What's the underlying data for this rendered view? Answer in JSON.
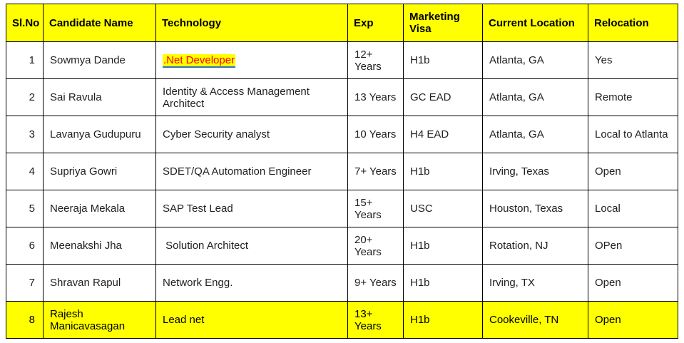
{
  "table": {
    "columns": [
      {
        "label": "Sl.No"
      },
      {
        "label": "Candidate Name"
      },
      {
        "label": "Technology"
      },
      {
        "label": "Exp"
      },
      {
        "label": "Marketing Visa"
      },
      {
        "label": "Current Location"
      },
      {
        "label": "Relocation"
      }
    ],
    "rows": [
      {
        "sl_no": "1",
        "candidate_name": "Sowmya Dande",
        "technology": ".Net Developer",
        "technology_is_link": true,
        "exp": "12+ Years",
        "marketing_visa": "H1b",
        "current_location": "Atlanta, GA",
        "relocation": "Yes",
        "highlighted": false
      },
      {
        "sl_no": "2",
        "candidate_name": "Sai Ravula",
        "technology": "Identity & Access Management Architect",
        "technology_is_link": false,
        "exp": "13 Years",
        "marketing_visa": "GC EAD",
        "current_location": "Atlanta, GA",
        "relocation": "Remote",
        "highlighted": false
      },
      {
        "sl_no": "3",
        "candidate_name": "Lavanya Gudupuru",
        "technology": "Cyber Security analyst",
        "technology_is_link": false,
        "exp": "10 Years",
        "marketing_visa": "H4 EAD",
        "current_location": "Atlanta, GA",
        "relocation": "Local to Atlanta",
        "highlighted": false
      },
      {
        "sl_no": "4",
        "candidate_name": "Supriya Gowri",
        "technology": "SDET/QA Automation Engineer",
        "technology_is_link": false,
        "exp": "7+ Years",
        "marketing_visa": "H1b",
        "current_location": "Irving, Texas",
        "relocation": "Open",
        "highlighted": false
      },
      {
        "sl_no": "5",
        "candidate_name": "Neeraja Mekala",
        "technology": "SAP Test Lead",
        "technology_is_link": false,
        "exp": "15+ Years",
        "marketing_visa": "USC",
        "current_location": "Houston, Texas",
        "relocation": "Local",
        "highlighted": false
      },
      {
        "sl_no": "6",
        "candidate_name": "Meenakshi Jha",
        "technology": " Solution Architect",
        "technology_is_link": false,
        "exp": "20+ Years",
        "marketing_visa": "H1b",
        "current_location": "Rotation, NJ",
        "relocation": "OPen",
        "highlighted": false
      },
      {
        "sl_no": "7",
        "candidate_name": "Shravan Rapul",
        "technology": "Network Engg.",
        "technology_is_link": false,
        "exp": "9+ Years",
        "marketing_visa": "H1b",
        "current_location": "Irving, TX",
        "relocation": "Open",
        "highlighted": false
      },
      {
        "sl_no": "8",
        "candidate_name": "Rajesh Manicavasagan",
        "technology": "Lead net",
        "technology_is_link": false,
        "exp": "13+ Years",
        "marketing_visa": "H1b",
        "current_location": "Cookeville, TN",
        "relocation": "Open",
        "highlighted": true
      }
    ]
  },
  "colors": {
    "header_bg": "#FFFF00",
    "highlight_row_bg": "#FFFF00",
    "link_text": "#FF0000",
    "link_highlight_bg": "#FFFF00",
    "link_underline": "#2E75B6",
    "border": "#000000",
    "body_text": "#1F1F1F"
  }
}
